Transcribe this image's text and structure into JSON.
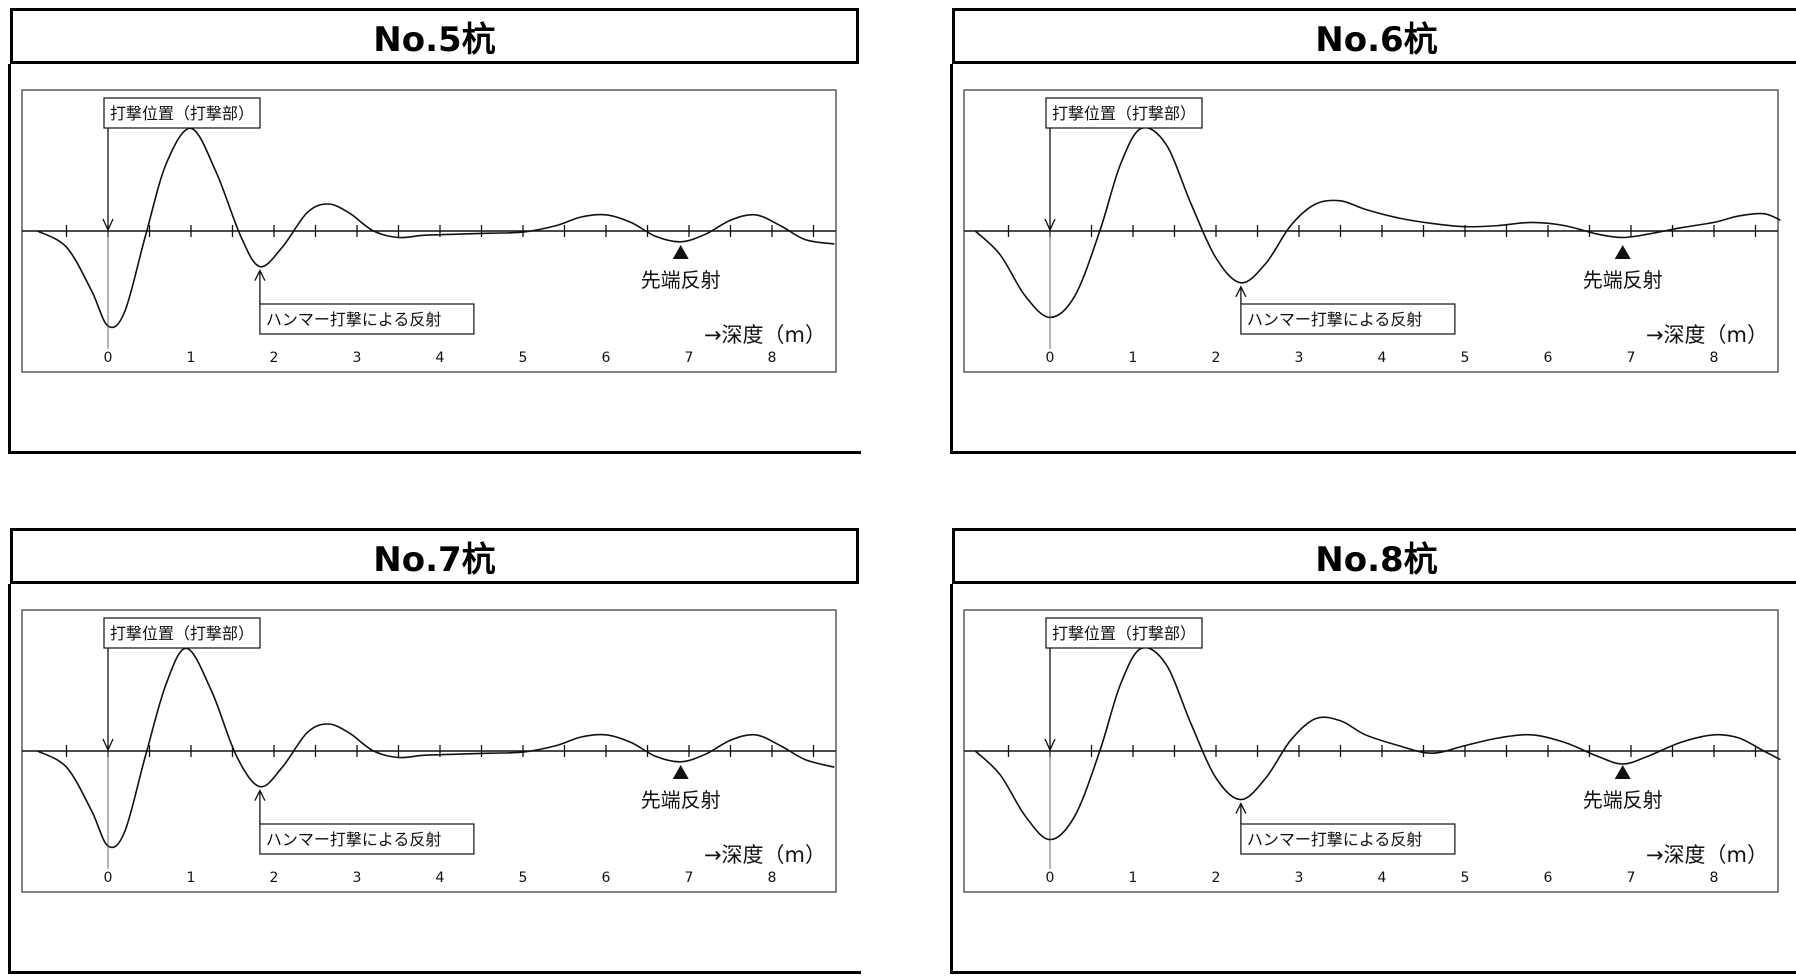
{
  "chart_data": [
    {
      "type": "line",
      "title": "No.5杭",
      "xlabel": "→深度（m）",
      "ylabel": "",
      "xlim": [
        -0.9,
        8.8
      ],
      "ylim": [
        -1.0,
        1.0
      ],
      "tick_labels": [
        "0",
        "1",
        "2",
        "3",
        "4",
        "5",
        "6",
        "7",
        "8"
      ],
      "grid": false,
      "annotations": {
        "strike": "打撃位置（打撃部）",
        "hammer": "ハンマー打撃による反射",
        "tip": "先端反射"
      },
      "marker_x": {
        "strike": 0,
        "hammer": 1.83,
        "tip": 6.9
      },
      "series": [
        {
          "x": [
            -0.85,
            -0.5,
            -0.2,
            0,
            0.2,
            0.45,
            0.7,
            1.0,
            1.3,
            1.6,
            1.83,
            2.1,
            2.4,
            2.65,
            2.9,
            3.2,
            3.5,
            3.8,
            4.2,
            4.6,
            5.0,
            5.4,
            5.7,
            6.0,
            6.3,
            6.6,
            6.9,
            7.2,
            7.5,
            7.8,
            8.1,
            8.4,
            8.75
          ],
          "y": [
            0.0,
            -0.15,
            -0.55,
            -0.88,
            -0.75,
            -0.05,
            0.62,
            0.95,
            0.55,
            -0.05,
            -0.33,
            -0.15,
            0.17,
            0.25,
            0.17,
            0.0,
            -0.06,
            -0.04,
            -0.03,
            -0.02,
            -0.01,
            0.05,
            0.13,
            0.15,
            0.08,
            -0.05,
            -0.1,
            -0.03,
            0.1,
            0.15,
            0.05,
            -0.08,
            -0.12
          ]
        }
      ]
    },
    {
      "type": "line",
      "title": "No.6杭",
      "xlabel": "→深度（m）",
      "ylabel": "",
      "xlim": [
        -0.9,
        8.8
      ],
      "ylim": [
        -1.0,
        1.0
      ],
      "tick_labels": [
        "0",
        "1",
        "2",
        "3",
        "4",
        "5",
        "6",
        "7",
        "8"
      ],
      "grid": false,
      "annotations": {
        "strike": "打撃位置（打撃部）",
        "hammer": "ハンマー打撃による反射",
        "tip": "先端反射"
      },
      "marker_x": {
        "strike": 0,
        "hammer": 2.3,
        "tip": 6.9
      },
      "series": [
        {
          "x": [
            -0.9,
            -0.6,
            -0.3,
            0,
            0.3,
            0.6,
            0.85,
            1.1,
            1.4,
            1.7,
            2.0,
            2.3,
            2.6,
            2.9,
            3.2,
            3.5,
            3.8,
            4.2,
            4.6,
            5.0,
            5.4,
            5.8,
            6.2,
            6.6,
            6.9,
            7.2,
            7.6,
            8.0,
            8.3,
            8.6,
            8.8
          ],
          "y": [
            0.0,
            -0.22,
            -0.6,
            -0.8,
            -0.6,
            0.0,
            0.62,
            0.95,
            0.8,
            0.25,
            -0.25,
            -0.48,
            -0.3,
            0.05,
            0.25,
            0.28,
            0.2,
            0.12,
            0.07,
            0.04,
            0.05,
            0.08,
            0.05,
            -0.03,
            -0.06,
            -0.03,
            0.03,
            0.08,
            0.14,
            0.16,
            0.1
          ]
        }
      ]
    },
    {
      "type": "line",
      "title": "No.7杭",
      "xlabel": "→深度（m）",
      "ylabel": "",
      "xlim": [
        -0.9,
        8.8
      ],
      "ylim": [
        -1.0,
        1.0
      ],
      "tick_labels": [
        "0",
        "1",
        "2",
        "3",
        "4",
        "5",
        "6",
        "7",
        "8"
      ],
      "grid": false,
      "annotations": {
        "strike": "打撃位置（打撃部）",
        "hammer": "ハンマー打撃による反射",
        "tip": "先端反射"
      },
      "marker_x": {
        "strike": 0,
        "hammer": 1.83,
        "tip": 6.9
      },
      "series": [
        {
          "x": [
            -0.85,
            -0.5,
            -0.2,
            0,
            0.2,
            0.45,
            0.7,
            0.95,
            1.25,
            1.55,
            1.83,
            2.1,
            2.4,
            2.65,
            2.9,
            3.2,
            3.5,
            3.8,
            4.2,
            4.6,
            5.0,
            5.4,
            5.7,
            6.0,
            6.3,
            6.6,
            6.9,
            7.2,
            7.5,
            7.8,
            8.1,
            8.4,
            8.75
          ],
          "y": [
            0.0,
            -0.15,
            -0.55,
            -0.88,
            -0.75,
            -0.05,
            0.62,
            0.95,
            0.55,
            -0.05,
            -0.33,
            -0.15,
            0.17,
            0.25,
            0.17,
            0.0,
            -0.06,
            -0.04,
            -0.03,
            -0.02,
            -0.01,
            0.05,
            0.13,
            0.15,
            0.08,
            -0.05,
            -0.1,
            -0.03,
            0.1,
            0.15,
            0.05,
            -0.08,
            -0.15
          ]
        }
      ]
    },
    {
      "type": "line",
      "title": "No.8杭",
      "xlabel": "→深度（m）",
      "ylabel": "",
      "xlim": [
        -0.9,
        8.8
      ],
      "ylim": [
        -1.0,
        1.0
      ],
      "tick_labels": [
        "0",
        "1",
        "2",
        "3",
        "4",
        "5",
        "6",
        "7",
        "8"
      ],
      "grid": false,
      "annotations": {
        "strike": "打撃位置（打撃部）",
        "hammer": "ハンマー打撃による反射",
        "tip": "先端反射"
      },
      "marker_x": {
        "strike": 0,
        "hammer": 2.3,
        "tip": 6.9
      },
      "series": [
        {
          "x": [
            -0.9,
            -0.6,
            -0.3,
            0,
            0.3,
            0.6,
            0.85,
            1.1,
            1.4,
            1.7,
            2.0,
            2.3,
            2.6,
            2.9,
            3.2,
            3.5,
            3.8,
            4.2,
            4.6,
            5.0,
            5.4,
            5.8,
            6.2,
            6.6,
            6.9,
            7.2,
            7.6,
            8.0,
            8.3,
            8.6,
            8.8
          ],
          "y": [
            0.0,
            -0.22,
            -0.6,
            -0.82,
            -0.6,
            0.0,
            0.62,
            0.95,
            0.8,
            0.25,
            -0.25,
            -0.45,
            -0.25,
            0.1,
            0.3,
            0.28,
            0.15,
            0.05,
            -0.02,
            0.05,
            0.12,
            0.15,
            0.08,
            -0.05,
            -0.12,
            -0.05,
            0.08,
            0.15,
            0.12,
            0.0,
            -0.08
          ]
        }
      ]
    }
  ]
}
